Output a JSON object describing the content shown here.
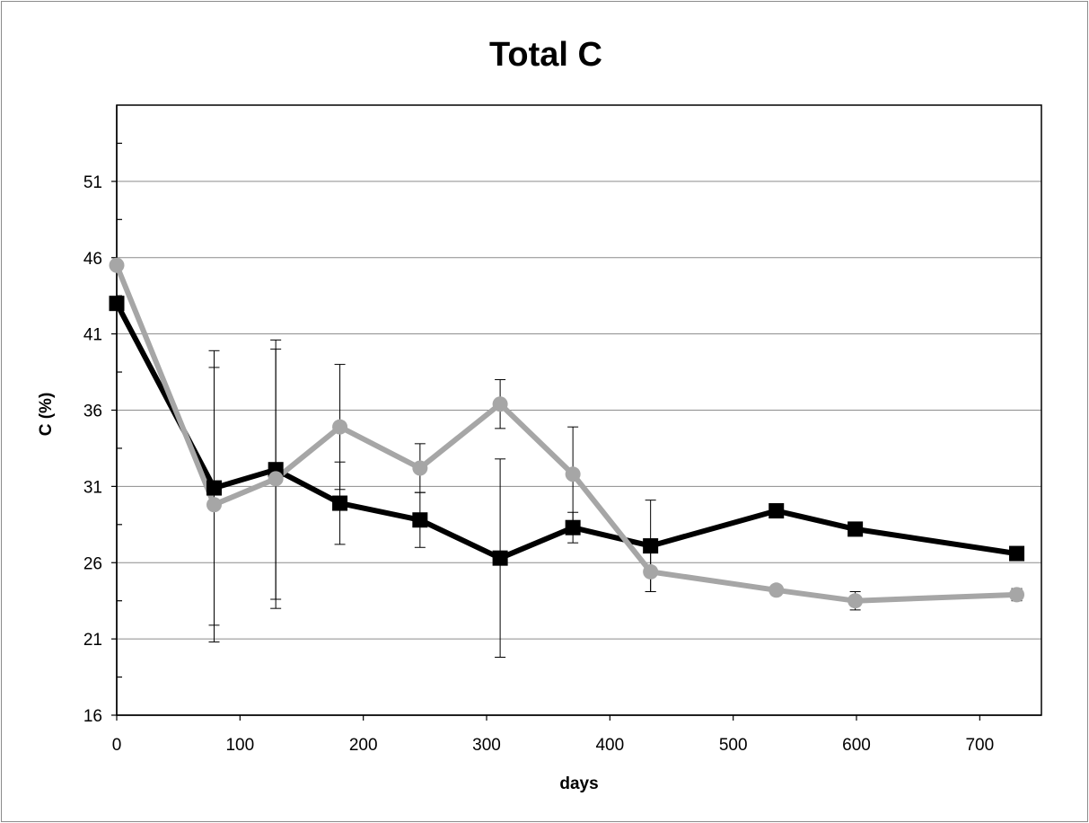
{
  "chart_data": {
    "type": "line",
    "title": "Total C",
    "xlabel": "days",
    "ylabel": "C (%)",
    "xlim": [
      0,
      750
    ],
    "ylim": [
      16,
      56
    ],
    "xticks": [
      0,
      100,
      200,
      300,
      400,
      500,
      600,
      700
    ],
    "yticks": [
      16,
      21,
      26,
      31,
      36,
      41,
      46,
      51
    ],
    "grid": "horizontal",
    "legend": "none",
    "series": [
      {
        "marker": "square",
        "color": "#000000",
        "points": [
          {
            "x": 0,
            "y": 43.0
          },
          {
            "x": 79,
            "y": 30.9,
            "err": 9.0
          },
          {
            "x": 129,
            "y": 32.1,
            "err": 8.5
          },
          {
            "x": 181,
            "y": 29.9,
            "err": 2.7
          },
          {
            "x": 246,
            "y": 28.8,
            "err": 1.8
          },
          {
            "x": 311,
            "y": 26.3,
            "err": 6.5
          },
          {
            "x": 370,
            "y": 28.3,
            "err": 1.0
          },
          {
            "x": 433,
            "y": 27.1,
            "err": 3.0
          },
          {
            "x": 535,
            "y": 29.4
          },
          {
            "x": 599,
            "y": 28.2
          },
          {
            "x": 730,
            "y": 26.6
          }
        ]
      },
      {
        "marker": "circle",
        "color": "#a6a6a6",
        "points": [
          {
            "x": 0,
            "y": 45.5
          },
          {
            "x": 79,
            "y": 29.8,
            "err": 9.0
          },
          {
            "x": 129,
            "y": 31.5,
            "err": 8.5
          },
          {
            "x": 181,
            "y": 34.9,
            "err": 4.1
          },
          {
            "x": 246,
            "y": 32.2,
            "err": 1.6
          },
          {
            "x": 311,
            "y": 36.4,
            "err": 1.6
          },
          {
            "x": 370,
            "y": 31.8,
            "err": 3.1
          },
          {
            "x": 433,
            "y": 25.4,
            "err": 1.3
          },
          {
            "x": 535,
            "y": 24.2
          },
          {
            "x": 599,
            "y": 23.5,
            "err": 0.6
          },
          {
            "x": 730,
            "y": 23.9,
            "err": 0.4
          }
        ]
      }
    ]
  }
}
